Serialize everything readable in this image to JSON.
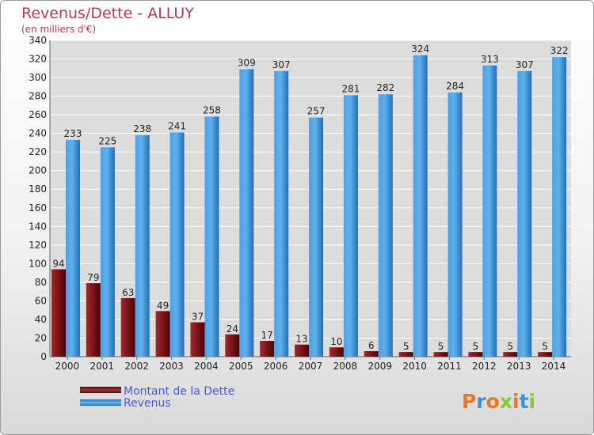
{
  "colors": {
    "dette": "#7a0f14",
    "revenus": "#2f86d2",
    "title": "#b03a5a",
    "legend_text": "#4a58d6",
    "grid": "#ffffff",
    "plot_bg": "#dcdcdc"
  },
  "logo": {
    "text": "Proxiti"
  },
  "chart_data": {
    "type": "bar",
    "title": "Revenus/Dette - ALLUY",
    "subtitle": "(en milliers d'€)",
    "categories": [
      "2000",
      "2001",
      "2002",
      "2003",
      "2004",
      "2005",
      "2006",
      "2007",
      "2008",
      "2009",
      "2010",
      "2011",
      "2012",
      "2013",
      "2014"
    ],
    "series": [
      {
        "name": "Montant de la Dette",
        "values": [
          94,
          79,
          63,
          49,
          37,
          24,
          17,
          13,
          10,
          6,
          5,
          5,
          5,
          5,
          5
        ]
      },
      {
        "name": "Revenus",
        "values": [
          233,
          225,
          238,
          241,
          258,
          309,
          307,
          257,
          281,
          282,
          324,
          284,
          313,
          307,
          322
        ]
      }
    ],
    "ylim": [
      0,
      340
    ],
    "yticks": [
      0,
      20,
      40,
      60,
      80,
      100,
      120,
      140,
      160,
      180,
      200,
      220,
      240,
      260,
      280,
      300,
      320,
      340
    ],
    "grid": true,
    "legend_position": "bottom-left"
  }
}
